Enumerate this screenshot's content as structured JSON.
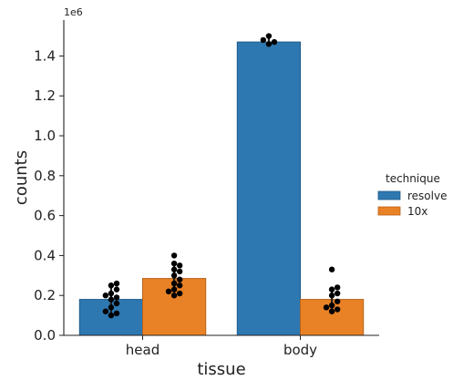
{
  "chart_data": {
    "type": "bar",
    "xlabel": "tissue",
    "ylabel": "counts",
    "y_offset_label": "1e6",
    "ylim": [
      0,
      1.58
    ],
    "yticks": [
      0.0,
      0.2,
      0.4,
      0.6,
      0.8,
      1.0,
      1.2,
      1.4
    ],
    "ytick_labels": [
      "0.0",
      "0.2",
      "0.4",
      "0.6",
      "0.8",
      "1.0",
      "1.2",
      "1.4"
    ],
    "categories": [
      "head",
      "body"
    ],
    "legend": {
      "title": "technique",
      "placement": "right"
    },
    "series": [
      {
        "name": "resolve",
        "color": "#2e78b1",
        "edge_color": "#1f5a87",
        "values": [
          0.18,
          1.47
        ],
        "error": [
          [
            0.11,
            0.25
          ],
          [
            1.455,
            1.49
          ]
        ],
        "points": [
          [
            0.1,
            0.11,
            0.12,
            0.14,
            0.16,
            0.18,
            0.19,
            0.2,
            0.21,
            0.23,
            0.25,
            0.26
          ],
          [
            1.46,
            1.47,
            1.48,
            1.5
          ]
        ]
      },
      {
        "name": "10x",
        "color": "#e98226",
        "edge_color": "#b8621a",
        "values": [
          0.285,
          0.18
        ],
        "error": [
          [
            0.22,
            0.355
          ],
          [
            0.13,
            0.235
          ]
        ],
        "points": [
          [
            0.2,
            0.21,
            0.22,
            0.23,
            0.25,
            0.26,
            0.28,
            0.3,
            0.32,
            0.33,
            0.35,
            0.36,
            0.4
          ],
          [
            0.12,
            0.13,
            0.14,
            0.15,
            0.17,
            0.2,
            0.21,
            0.23,
            0.24,
            0.33
          ]
        ]
      }
    ],
    "point_color": "#000000",
    "error_color": "#222222"
  }
}
